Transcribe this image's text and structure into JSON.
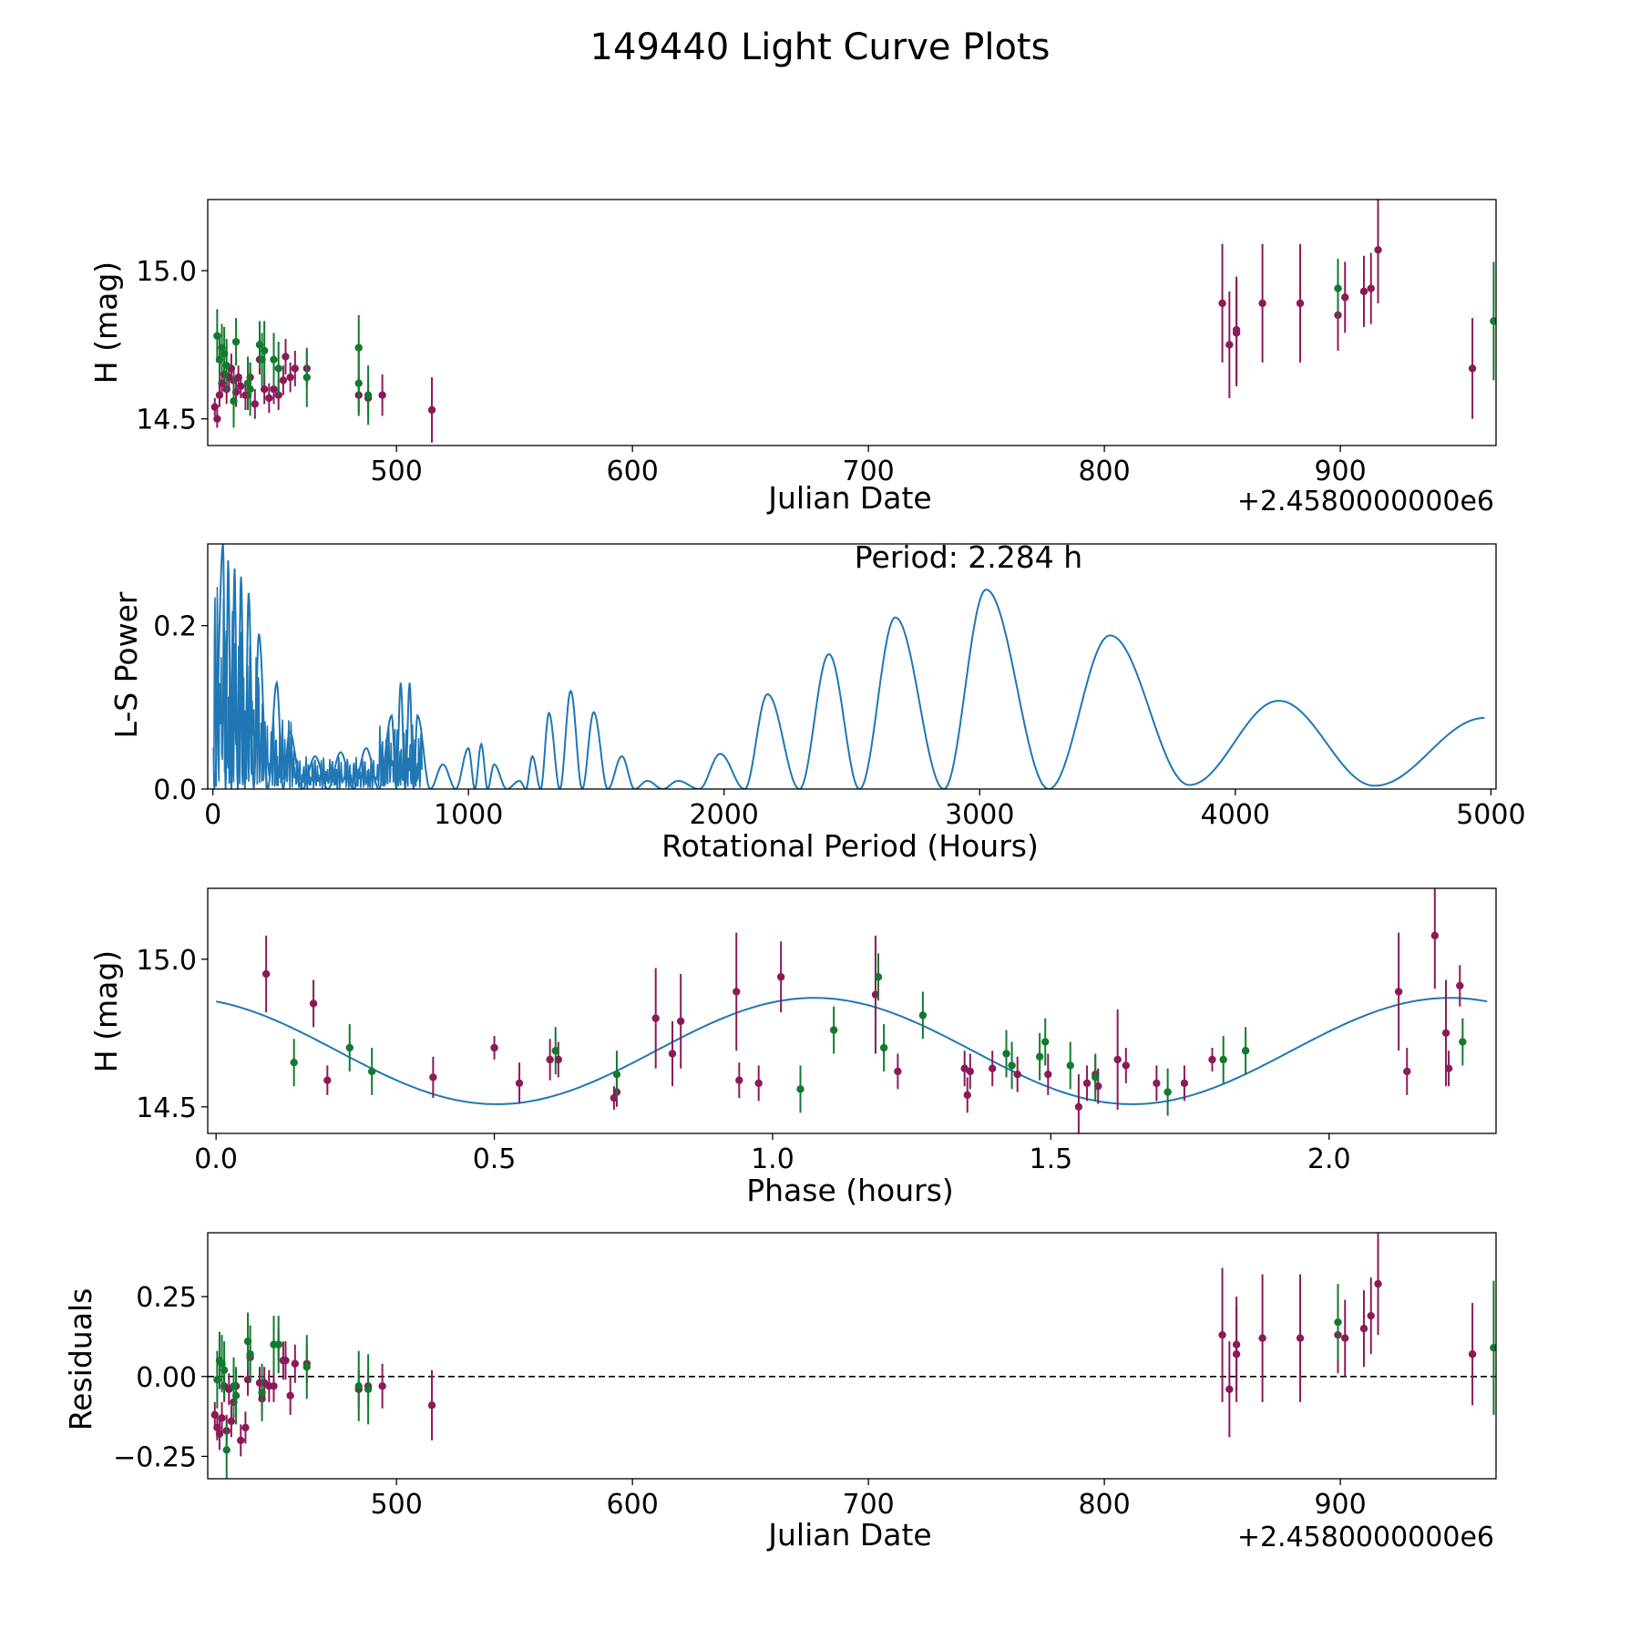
{
  "figure_title": "149440 Light Curve Plots",
  "colors": {
    "purple": "#8b1a5a",
    "green": "#127a2e",
    "line": "#1f77b4",
    "zero_line": "#000000"
  },
  "chart_data": [
    {
      "id": "lc",
      "type": "scatter",
      "title": "",
      "xlabel": "Julian Date",
      "ylabel": "H (mag)",
      "offset_text": "+2.4580000000e6",
      "xlim": [
        420,
        966
      ],
      "ylim": [
        14.41,
        15.24
      ],
      "y_inverted": false,
      "xticks": [
        500,
        600,
        700,
        800,
        900
      ],
      "xtick_labels": [
        "500",
        "600",
        "700",
        "800",
        "900"
      ],
      "yticks": [
        14.5,
        15.0
      ],
      "ytick_labels": [
        "14.5",
        "15.0"
      ],
      "series": [
        {
          "name": "purple filter",
          "color": "purple",
          "x": [
            423,
            424,
            425,
            426,
            427,
            428,
            429,
            430,
            431,
            432,
            433,
            434,
            436,
            437,
            438,
            440,
            442,
            444,
            446,
            448,
            450,
            452,
            453,
            455,
            457,
            462,
            484,
            488,
            494,
            515,
            850,
            853,
            856,
            856,
            867,
            883,
            899,
            902,
            910,
            913,
            916,
            956
          ],
          "y": [
            14.54,
            14.5,
            14.58,
            14.62,
            14.65,
            14.6,
            14.64,
            14.67,
            14.63,
            14.59,
            14.64,
            14.61,
            14.58,
            14.58,
            14.64,
            14.55,
            14.7,
            14.6,
            14.57,
            14.6,
            14.58,
            14.63,
            14.71,
            14.64,
            14.67,
            14.67,
            14.58,
            14.57,
            14.58,
            14.53,
            14.89,
            14.75,
            14.79,
            14.8,
            14.89,
            14.89,
            14.85,
            14.91,
            14.93,
            14.94,
            15.07,
            14.67
          ],
          "err": [
            0.03,
            0.03,
            0.04,
            0.04,
            0.05,
            0.05,
            0.04,
            0.05,
            0.04,
            0.05,
            0.04,
            0.04,
            0.05,
            0.05,
            0.05,
            0.05,
            0.05,
            0.05,
            0.05,
            0.05,
            0.05,
            0.05,
            0.06,
            0.05,
            0.06,
            0.06,
            0.06,
            0.06,
            0.07,
            0.11,
            0.2,
            0.18,
            0.18,
            0.18,
            0.2,
            0.2,
            0.12,
            0.12,
            0.12,
            0.12,
            0.18,
            0.17
          ]
        },
        {
          "name": "green filter",
          "color": "green",
          "x": [
            424,
            425,
            426,
            427,
            428,
            431,
            432,
            437,
            438,
            442,
            443,
            444,
            448,
            450,
            462,
            484,
            484,
            488,
            899,
            965
          ],
          "y": [
            14.78,
            14.7,
            14.74,
            14.72,
            14.68,
            14.56,
            14.76,
            14.62,
            14.6,
            14.75,
            14.7,
            14.73,
            14.7,
            14.67,
            14.64,
            14.74,
            14.62,
            14.58,
            14.94,
            14.83
          ],
          "err": [
            0.09,
            0.08,
            0.08,
            0.09,
            0.09,
            0.09,
            0.08,
            0.09,
            0.09,
            0.08,
            0.09,
            0.1,
            0.09,
            0.09,
            0.1,
            0.11,
            0.11,
            0.1,
            0.1,
            0.2
          ]
        }
      ]
    },
    {
      "id": "ls",
      "type": "line",
      "title": "",
      "xlabel": "Rotational Period (Hours)",
      "ylabel": "L-S Power",
      "annotation": "Period: 2.284 h",
      "xlim": [
        -20,
        5020
      ],
      "ylim": [
        0,
        0.3
      ],
      "xticks": [
        0,
        1000,
        2000,
        3000,
        4000,
        5000
      ],
      "xtick_labels": [
        "0",
        "1000",
        "2000",
        "3000",
        "4000",
        "5000"
      ],
      "yticks": [
        0.0,
        0.2
      ],
      "ytick_labels": [
        "0.0",
        "0.2"
      ],
      "peaks": [
        {
          "x": 40,
          "y": 0.3
        },
        {
          "x": 60,
          "y": 0.28
        },
        {
          "x": 85,
          "y": 0.27
        },
        {
          "x": 110,
          "y": 0.26
        },
        {
          "x": 140,
          "y": 0.24
        },
        {
          "x": 180,
          "y": 0.19
        },
        {
          "x": 250,
          "y": 0.13
        },
        {
          "x": 300,
          "y": 0.07
        },
        {
          "x": 400,
          "y": 0.04
        },
        {
          "x": 500,
          "y": 0.045
        },
        {
          "x": 600,
          "y": 0.05
        },
        {
          "x": 700,
          "y": 0.09
        },
        {
          "x": 735,
          "y": 0.13
        },
        {
          "x": 770,
          "y": 0.13
        },
        {
          "x": 800,
          "y": 0.09
        },
        {
          "x": 900,
          "y": 0.03
        },
        {
          "x": 1000,
          "y": 0.05
        },
        {
          "x": 1050,
          "y": 0.055
        },
        {
          "x": 1100,
          "y": 0.03
        },
        {
          "x": 1200,
          "y": 0.01
        },
        {
          "x": 1250,
          "y": 0.04
        },
        {
          "x": 1315,
          "y": 0.093
        },
        {
          "x": 1400,
          "y": 0.12
        },
        {
          "x": 1490,
          "y": 0.094
        },
        {
          "x": 1600,
          "y": 0.04
        },
        {
          "x": 1700,
          "y": 0.01
        },
        {
          "x": 1820,
          "y": 0.01
        },
        {
          "x": 1985,
          "y": 0.043
        },
        {
          "x": 2170,
          "y": 0.116
        },
        {
          "x": 2410,
          "y": 0.165
        },
        {
          "x": 2670,
          "y": 0.21
        },
        {
          "x": 3025,
          "y": 0.244
        },
        {
          "x": 3510,
          "y": 0.188
        },
        {
          "x": 4170,
          "y": 0.108
        },
        {
          "x": 4975,
          "y": 0.087
        }
      ],
      "troughs": [
        {
          "x": 2080,
          "y": 0.0
        },
        {
          "x": 2295,
          "y": 0.0
        },
        {
          "x": 2530,
          "y": 0.0
        },
        {
          "x": 2860,
          "y": 0.0
        },
        {
          "x": 3270,
          "y": 0.0
        },
        {
          "x": 3820,
          "y": 0.005
        },
        {
          "x": 4545,
          "y": 0.004
        }
      ]
    },
    {
      "id": "phase",
      "type": "scatter",
      "title": "",
      "xlabel": "Phase (hours)",
      "ylabel": "H (mag)",
      "xlim": [
        -0.015,
        2.3
      ],
      "ylim": [
        14.41,
        15.24
      ],
      "xticks": [
        0.0,
        0.5,
        1.0,
        1.5,
        2.0
      ],
      "xtick_labels": [
        "0.0",
        "0.5",
        "1.0",
        "1.5",
        "2.0"
      ],
      "yticks": [
        14.5,
        15.0
      ],
      "ytick_labels": [
        "14.5",
        "15.0"
      ],
      "model": {
        "period_h": 2.284,
        "mean": 14.689,
        "amplitude": 0.18,
        "phase_of_max": 1.075
      },
      "series": [
        {
          "name": "purple filter",
          "color": "purple",
          "x": [
            0.09,
            0.175,
            0.2,
            0.39,
            0.5,
            0.545,
            0.6,
            0.615,
            0.715,
            0.72,
            0.79,
            0.82,
            0.835,
            0.935,
            0.94,
            0.975,
            1.015,
            1.185,
            1.225,
            1.345,
            1.35,
            1.355,
            1.395,
            1.44,
            1.495,
            1.55,
            1.565,
            1.58,
            1.585,
            1.62,
            1.635,
            1.69,
            1.74,
            1.79,
            2.125,
            2.14,
            2.19,
            2.21,
            2.215,
            2.235
          ],
          "y": [
            14.95,
            14.85,
            14.59,
            14.6,
            14.7,
            14.58,
            14.66,
            14.66,
            14.53,
            14.55,
            14.8,
            14.68,
            14.79,
            14.89,
            14.59,
            14.58,
            14.94,
            14.88,
            14.62,
            14.63,
            14.54,
            14.62,
            14.63,
            14.61,
            14.61,
            14.5,
            14.58,
            14.61,
            14.57,
            14.66,
            14.64,
            14.58,
            14.58,
            14.66,
            14.89,
            14.62,
            15.08,
            14.75,
            14.63,
            14.91
          ],
          "err": [
            0.13,
            0.08,
            0.05,
            0.07,
            0.04,
            0.07,
            0.07,
            0.06,
            0.04,
            0.05,
            0.17,
            0.11,
            0.16,
            0.2,
            0.06,
            0.06,
            0.12,
            0.2,
            0.06,
            0.06,
            0.06,
            0.06,
            0.06,
            0.06,
            0.07,
            0.11,
            0.06,
            0.06,
            0.06,
            0.17,
            0.06,
            0.06,
            0.06,
            0.04,
            0.2,
            0.08,
            0.18,
            0.18,
            0.06,
            0.07
          ]
        },
        {
          "name": "green filter",
          "color": "green",
          "x": [
            0.14,
            0.24,
            0.28,
            0.61,
            0.72,
            1.05,
            1.11,
            1.19,
            1.2,
            1.27,
            1.42,
            1.43,
            1.48,
            1.49,
            1.535,
            1.58,
            1.71,
            1.81,
            1.85,
            2.24
          ],
          "y": [
            14.65,
            14.7,
            14.62,
            14.69,
            14.61,
            14.56,
            14.76,
            14.94,
            14.7,
            14.81,
            14.68,
            14.64,
            14.67,
            14.72,
            14.64,
            14.6,
            14.55,
            14.66,
            14.69,
            14.72
          ]
        }
      ]
    },
    {
      "id": "resid",
      "type": "scatter",
      "title": "",
      "xlabel": "Julian Date",
      "ylabel": "Residuals",
      "offset_text": "+2.4580000000e6",
      "xlim": [
        420,
        966
      ],
      "ylim": [
        -0.32,
        0.45
      ],
      "xticks": [
        500,
        600,
        700,
        800,
        900
      ],
      "xtick_labels": [
        "500",
        "600",
        "700",
        "800",
        "900"
      ],
      "yticks": [
        -0.25,
        0.0,
        0.25
      ],
      "ytick_labels": [
        "−0.25",
        "0.00",
        "0.25"
      ],
      "zero_line": 0.0,
      "series": [
        {
          "name": "purple filter",
          "color": "purple",
          "x": [
            423,
            424,
            425,
            426,
            427,
            428,
            429,
            430,
            431,
            432,
            434,
            436,
            437,
            438,
            442,
            443,
            444,
            446,
            448,
            450,
            452,
            453,
            455,
            457,
            462,
            484,
            488,
            494,
            515,
            850,
            853,
            856,
            856,
            867,
            883,
            899,
            902,
            910,
            913,
            916,
            956
          ],
          "y": [
            -0.12,
            -0.16,
            -0.18,
            -0.13,
            -0.03,
            -0.17,
            -0.04,
            -0.14,
            -0.08,
            -0.03,
            -0.2,
            -0.16,
            -0.01,
            0.06,
            -0.02,
            -0.07,
            -0.02,
            -0.03,
            -0.03,
            0.1,
            0.05,
            0.05,
            -0.06,
            0.04,
            0.04,
            -0.04,
            -0.03,
            -0.03,
            -0.09,
            0.13,
            -0.04,
            0.07,
            0.1,
            0.12,
            0.12,
            0.13,
            0.12,
            0.15,
            0.19,
            0.29,
            0.07
          ],
          "err": [
            0.04,
            0.04,
            0.05,
            0.05,
            0.05,
            0.05,
            0.05,
            0.05,
            0.05,
            0.05,
            0.05,
            0.05,
            0.05,
            0.05,
            0.05,
            0.05,
            0.05,
            0.05,
            0.05,
            0.05,
            0.06,
            0.06,
            0.06,
            0.06,
            0.06,
            0.06,
            0.06,
            0.07,
            0.11,
            0.21,
            0.15,
            0.15,
            0.15,
            0.2,
            0.2,
            0.12,
            0.12,
            0.12,
            0.12,
            0.16,
            0.16
          ]
        },
        {
          "name": "green filter",
          "color": "green",
          "x": [
            424,
            425,
            426,
            427,
            428,
            431,
            432,
            437,
            438,
            443,
            448,
            450,
            462,
            484,
            488,
            899,
            965
          ],
          "y": [
            -0.01,
            0.05,
            0.04,
            0.02,
            -0.23,
            -0.03,
            -0.06,
            0.11,
            0.07,
            -0.05,
            0.1,
            0.1,
            0.03,
            -0.03,
            -0.04,
            0.17,
            0.09
          ],
          "err": [
            0.09,
            0.09,
            0.09,
            0.09,
            0.09,
            0.09,
            0.09,
            0.09,
            0.09,
            0.09,
            0.09,
            0.09,
            0.1,
            0.11,
            0.11,
            0.12,
            0.21
          ]
        }
      ]
    }
  ]
}
